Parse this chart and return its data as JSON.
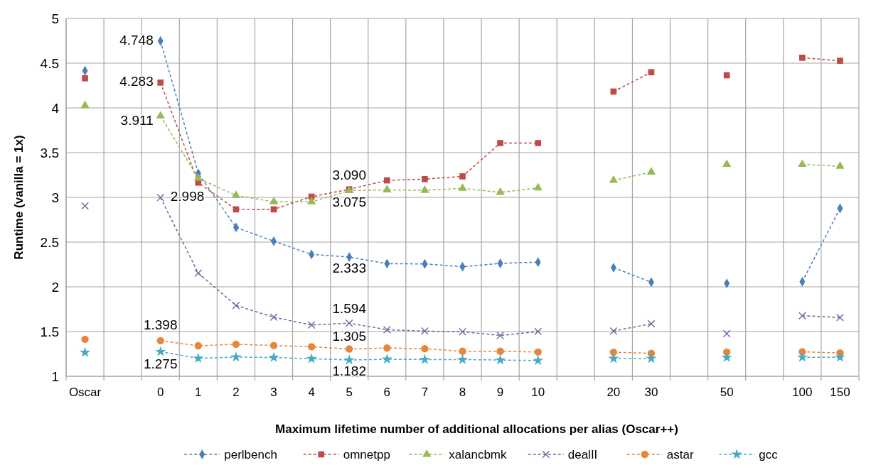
{
  "chart_data": {
    "type": "line",
    "xlabel": "Maximum lifetime number of additional allocations per alias (Oscar++)",
    "ylabel": "Runtime (vanilla = 1x)",
    "categories": [
      "Oscar",
      null,
      "0",
      "1",
      "2",
      "3",
      "4",
      "5",
      "6",
      "7",
      "8",
      "9",
      "10",
      null,
      "20",
      "30",
      null,
      "50",
      null,
      "100",
      "150"
    ],
    "ylim": [
      1,
      5
    ],
    "yticks": [
      1,
      1.5,
      2,
      2.5,
      3,
      3.5,
      4,
      4.5,
      5
    ],
    "grid": true,
    "legend": "bottom",
    "line_style": "dashed",
    "series": [
      {
        "name": "perlbench",
        "color": "#4a7ebb",
        "marker": "diamond",
        "values": [
          4.415,
          null,
          4.748,
          3.269,
          2.664,
          2.51,
          2.362,
          2.333,
          2.259,
          2.256,
          2.225,
          2.262,
          2.276,
          null,
          2.214,
          2.052,
          null,
          2.038,
          null,
          2.057,
          2.877
        ],
        "value_labels": [
          null,
          null,
          "4.748",
          null,
          null,
          null,
          null,
          "2.333",
          null,
          null,
          null,
          null,
          null,
          null,
          null,
          null,
          null,
          null,
          null,
          null,
          null
        ]
      },
      {
        "name": "omnetpp",
        "color": "#be4b48",
        "marker": "square",
        "values": [
          4.331,
          null,
          4.283,
          3.165,
          2.866,
          2.866,
          3.008,
          3.09,
          3.19,
          3.204,
          3.235,
          3.607,
          3.607,
          null,
          4.183,
          4.399,
          null,
          4.365,
          null,
          4.561,
          4.527
        ],
        "value_labels": [
          null,
          null,
          "4.283",
          null,
          null,
          null,
          null,
          "3.090",
          null,
          null,
          null,
          null,
          null,
          null,
          null,
          null,
          null,
          null,
          null,
          null,
          null
        ]
      },
      {
        "name": "xalancbmk",
        "color": "#98b954",
        "marker": "triangle",
        "values": [
          4.027,
          null,
          3.911,
          3.213,
          3.022,
          2.95,
          2.95,
          3.075,
          3.084,
          3.078,
          3.101,
          3.056,
          3.106,
          null,
          3.19,
          3.283,
          null,
          3.369,
          null,
          3.369,
          3.347
        ],
        "value_labels": [
          null,
          null,
          "3.911",
          null,
          null,
          null,
          null,
          "3.075",
          null,
          null,
          null,
          null,
          null,
          null,
          null,
          null,
          null,
          null,
          null,
          null,
          null
        ]
      },
      {
        "name": "dealII",
        "color": "#7d60a0",
        "marker": "cross",
        "values": [
          2.905,
          null,
          2.998,
          2.153,
          1.792,
          1.66,
          1.573,
          1.594,
          1.52,
          1.506,
          1.498,
          1.456,
          1.501,
          null,
          1.506,
          1.587,
          null,
          1.476,
          null,
          1.677,
          1.657
        ],
        "value_labels": [
          null,
          null,
          "2.998",
          null,
          null,
          null,
          null,
          "1.594",
          null,
          null,
          null,
          null,
          null,
          null,
          null,
          null,
          null,
          null,
          null,
          null,
          null
        ]
      },
      {
        "name": "astar",
        "color": "#e6863a",
        "marker": "circle",
        "values": [
          1.414,
          null,
          1.398,
          1.341,
          1.358,
          1.344,
          1.33,
          1.305,
          1.316,
          1.308,
          1.28,
          1.28,
          1.271,
          null,
          1.269,
          1.257,
          null,
          1.271,
          null,
          1.274,
          1.26
        ],
        "value_labels": [
          null,
          null,
          "1.398",
          null,
          null,
          null,
          null,
          "1.305",
          null,
          null,
          null,
          null,
          null,
          null,
          null,
          null,
          null,
          null,
          null,
          null,
          null
        ]
      },
      {
        "name": "gcc",
        "color": "#46aac5",
        "marker": "star",
        "values": [
          1.266,
          null,
          1.275,
          1.201,
          1.215,
          1.21,
          1.196,
          1.182,
          1.19,
          1.187,
          1.187,
          1.182,
          1.176,
          null,
          1.198,
          1.198,
          null,
          1.21,
          null,
          1.213,
          1.213
        ],
        "value_labels": [
          null,
          null,
          "1.275",
          null,
          null,
          null,
          null,
          "1.182",
          null,
          null,
          null,
          null,
          null,
          null,
          null,
          null,
          null,
          null,
          null,
          null,
          null
        ]
      }
    ]
  }
}
